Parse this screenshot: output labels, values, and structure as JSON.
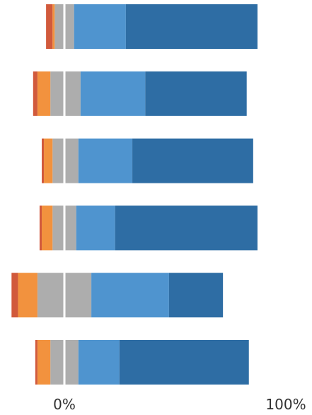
{
  "chart_data": {
    "type": "bar",
    "orientation": "horizontal",
    "layout": "diverging-stacked",
    "xlabel": "",
    "ylabel": "",
    "x_tick_labels": [
      "0%",
      "100%"
    ],
    "grid": false,
    "legend": "none",
    "categories": [
      "",
      "",
      "",
      "",
      "",
      ""
    ],
    "series": [
      {
        "color": "#d15a3c",
        "values": [
          3,
          2,
          1,
          1,
          3,
          1
        ]
      },
      {
        "color": "#f2923e",
        "values": [
          1,
          6,
          4,
          5,
          9,
          6
        ]
      },
      {
        "color": "#adadad",
        "values": [
          4,
          6,
          5,
          5,
          12,
          6
        ]
      },
      {
        "color": "#adadad",
        "values": [
          4,
          7,
          6,
          5,
          12,
          6
        ]
      },
      {
        "color": "#4f94cf",
        "values": [
          24,
          30,
          25,
          18,
          36,
          19
        ]
      },
      {
        "color": "#2e6da4",
        "values": [
          61,
          47,
          56,
          66,
          25,
          60
        ]
      }
    ],
    "neutral_split": {
      "left_series_index": 2,
      "right_series_index": 3
    }
  }
}
